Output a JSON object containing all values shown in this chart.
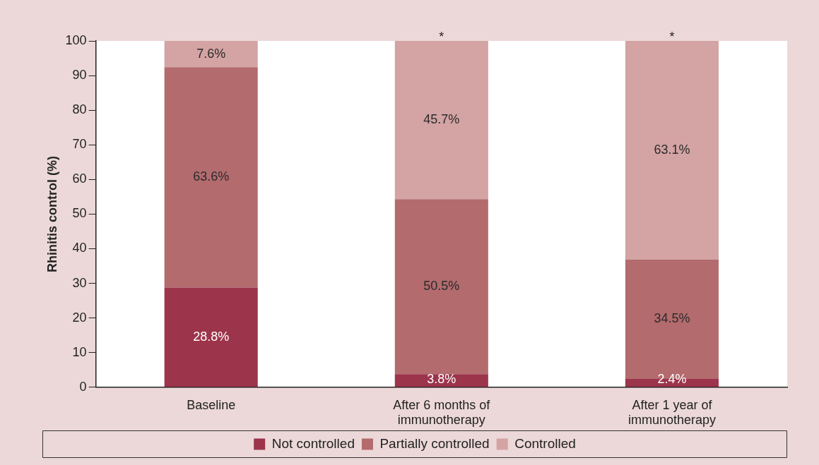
{
  "chart_data": {
    "type": "bar",
    "stacked": true,
    "ylabel": "Rhinitis control (%)",
    "categories": [
      "Baseline",
      "After 6 months of immunotherapy",
      "After 1 year of immunotherapy"
    ],
    "series": [
      {
        "name": "Not controlled",
        "color": "#9c344b",
        "values": [
          28.8,
          3.8,
          2.4
        ],
        "value_labels": [
          "28.8%",
          "3.8%",
          "2.4%"
        ]
      },
      {
        "name": "Partially controlled",
        "color": "#b36b6e",
        "values": [
          63.6,
          50.5,
          34.5
        ],
        "value_labels": [
          "63.6%",
          "50.5%",
          "34.5%"
        ]
      },
      {
        "name": "Controlled",
        "color": "#d4a3a3",
        "values": [
          7.6,
          45.7,
          63.1
        ],
        "value_labels": [
          "7.6%",
          "45.7%",
          "63.1%"
        ]
      }
    ],
    "ylim": [
      0,
      100
    ],
    "yticks": [
      0,
      10,
      20,
      30,
      40,
      50,
      60,
      70,
      80,
      90,
      100
    ],
    "grid": false,
    "legend": "bottom",
    "annotations": [
      {
        "text": "*",
        "x": "After 6 months of immunotherapy",
        "y": 100
      },
      {
        "text": "*",
        "x": "After 1 year of immunotherapy",
        "y": 100
      }
    ]
  }
}
